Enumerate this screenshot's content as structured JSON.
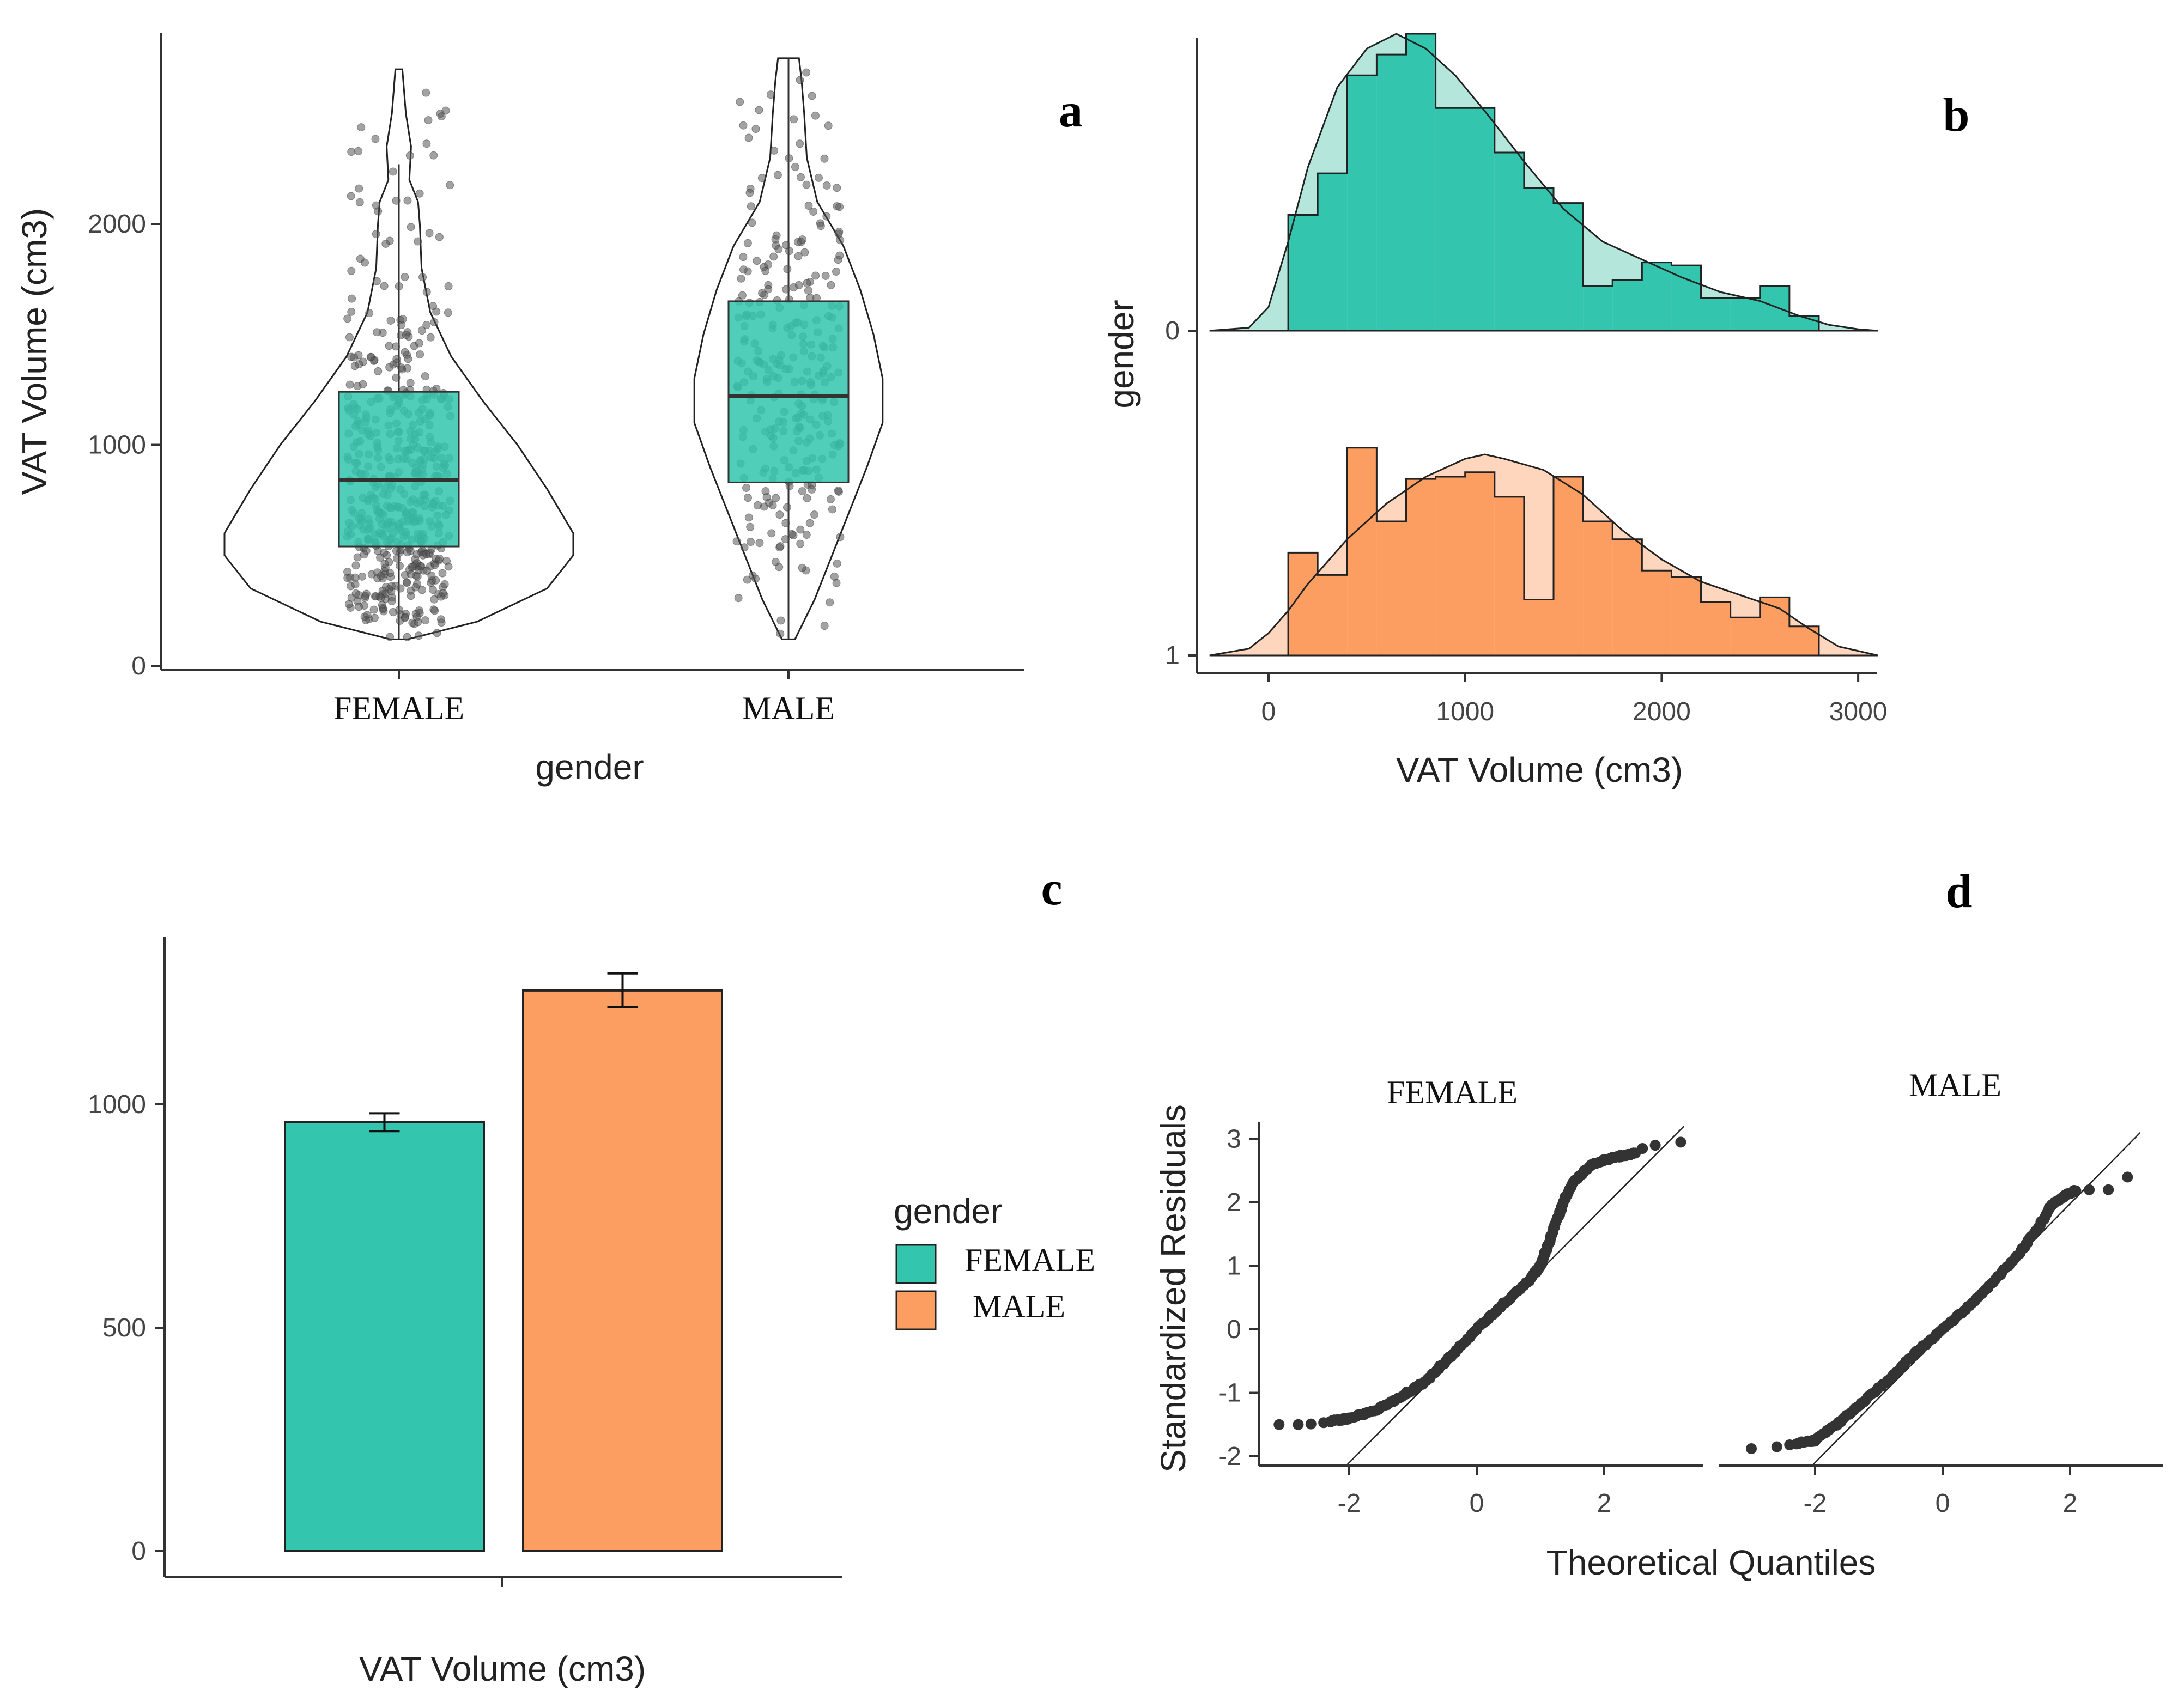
{
  "panels": {
    "a": {
      "letter": "a",
      "chart_data": {
        "type": "violin+box+jitter",
        "xlabel": "gender",
        "ylabel": "VAT Volume (cm3)",
        "categories": [
          "FEMALE",
          "MALE"
        ],
        "yticks": [
          0,
          1000,
          2000
        ],
        "ylim": [
          0,
          2900
        ],
        "violins": [
          {
            "name": "FEMALE",
            "min": 120,
            "max": 2700,
            "density": [
              [
                120,
                0.05
              ],
              [
                200,
                0.45
              ],
              [
                350,
                0.85
              ],
              [
                500,
                1.0
              ],
              [
                600,
                1.0
              ],
              [
                800,
                0.85
              ],
              [
                1000,
                0.68
              ],
              [
                1200,
                0.48
              ],
              [
                1400,
                0.3
              ],
              [
                1600,
                0.18
              ],
              [
                1800,
                0.13
              ],
              [
                2000,
                0.12
              ],
              [
                2100,
                0.11
              ],
              [
                2200,
                0.06
              ],
              [
                2350,
                0.07
              ],
              [
                2500,
                0.04
              ],
              [
                2600,
                0.03
              ],
              [
                2700,
                0.02
              ]
            ]
          },
          {
            "name": "MALE",
            "min": 120,
            "max": 2750,
            "density": [
              [
                120,
                0.05
              ],
              [
                300,
                0.2
              ],
              [
                600,
                0.4
              ],
              [
                900,
                0.6
              ],
              [
                1100,
                0.72
              ],
              [
                1300,
                0.72
              ],
              [
                1500,
                0.65
              ],
              [
                1700,
                0.55
              ],
              [
                1900,
                0.42
              ],
              [
                2100,
                0.22
              ],
              [
                2300,
                0.14
              ],
              [
                2500,
                0.12
              ],
              [
                2650,
                0.1
              ],
              [
                2750,
                0.08
              ]
            ]
          }
        ],
        "boxes": [
          {
            "name": "FEMALE",
            "q1": 540,
            "median": 840,
            "q3": 1240,
            "whisker_low": 120,
            "whisker_high": 2270
          },
          {
            "name": "MALE",
            "q1": 830,
            "median": 1220,
            "q3": 1650,
            "whisker_low": 120,
            "whisker_high": 2750
          }
        ]
      }
    },
    "b": {
      "letter": "b",
      "chart_data": {
        "type": "ridgeline-histogram",
        "xlabel": "VAT Volume (cm3)",
        "ylabel": "gender",
        "xticks": [
          0,
          1000,
          2000,
          3000
        ],
        "xlim": [
          -350,
          3200
        ],
        "yticks": [
          "0",
          "1"
        ],
        "bin_width": 150,
        "series": [
          {
            "name": "0",
            "bin_starts": [
              100,
              250,
              400,
              550,
              700,
              850,
              1000,
              1150,
              1300,
              1450,
              1600,
              1750,
              1900,
              2050,
              2200,
              2350,
              2500,
              2650
            ],
            "counts": [
              0.39,
              0.53,
              0.86,
              0.93,
              1.0,
              0.75,
              0.75,
              0.6,
              0.48,
              0.43,
              0.15,
              0.17,
              0.23,
              0.22,
              0.11,
              0.11,
              0.15,
              0.05
            ],
            "density_curve": [
              [
                -300,
                0
              ],
              [
                -100,
                0.01
              ],
              [
                0,
                0.08
              ],
              [
                100,
                0.3
              ],
              [
                200,
                0.55
              ],
              [
                350,
                0.82
              ],
              [
                500,
                0.95
              ],
              [
                650,
                1.0
              ],
              [
                800,
                0.95
              ],
              [
                950,
                0.86
              ],
              [
                1100,
                0.74
              ],
              [
                1300,
                0.57
              ],
              [
                1500,
                0.41
              ],
              [
                1700,
                0.3
              ],
              [
                1900,
                0.24
              ],
              [
                2100,
                0.18
              ],
              [
                2300,
                0.13
              ],
              [
                2500,
                0.1
              ],
              [
                2700,
                0.05
              ],
              [
                2850,
                0.02
              ],
              [
                3000,
                0.005
              ],
              [
                3100,
                0
              ]
            ]
          },
          {
            "name": "1",
            "bin_starts": [
              100,
              250,
              400,
              550,
              700,
              850,
              1000,
              1150,
              1300,
              1450,
              1600,
              1750,
              1900,
              2050,
              2200,
              2350,
              2500,
              2650
            ],
            "counts": [
              0.46,
              0.36,
              0.93,
              0.6,
              0.79,
              0.8,
              0.82,
              0.71,
              0.25,
              0.8,
              0.6,
              0.52,
              0.38,
              0.35,
              0.24,
              0.17,
              0.26,
              0.13
            ],
            "density_curve": [
              [
                -300,
                0
              ],
              [
                -100,
                0.03
              ],
              [
                0,
                0.1
              ],
              [
                100,
                0.2
              ],
              [
                200,
                0.32
              ],
              [
                400,
                0.52
              ],
              [
                600,
                0.68
              ],
              [
                800,
                0.8
              ],
              [
                1000,
                0.88
              ],
              [
                1100,
                0.9
              ],
              [
                1200,
                0.88
              ],
              [
                1400,
                0.83
              ],
              [
                1600,
                0.72
              ],
              [
                1800,
                0.56
              ],
              [
                2000,
                0.43
              ],
              [
                2200,
                0.33
              ],
              [
                2400,
                0.27
              ],
              [
                2600,
                0.21
              ],
              [
                2750,
                0.12
              ],
              [
                2900,
                0.04
              ],
              [
                3100,
                0
              ]
            ]
          }
        ]
      }
    },
    "c": {
      "letter": "c",
      "chart_data": {
        "type": "bar",
        "xlabel": "VAT Volume (cm3)",
        "ylabel": "",
        "categories": [
          "FEMALE",
          "MALE"
        ],
        "values": [
          960,
          1255
        ],
        "errors": [
          20,
          38
        ],
        "yticks": [
          0,
          500,
          1000
        ],
        "ylim": [
          0,
          1370
        ]
      },
      "legend": {
        "title": "gender",
        "items": [
          {
            "label": "FEMALE",
            "color": "#33c5ad"
          },
          {
            "label": "MALE",
            "color": "#fc9d61"
          }
        ]
      }
    },
    "d": {
      "letter": "d",
      "chart_data": {
        "type": "qq-scatter",
        "xlabel": "Theoretical Quantiles",
        "ylabel": "Standardized Residuals",
        "facets": [
          "FEMALE",
          "MALE"
        ],
        "xticks": [
          -2,
          0,
          2
        ],
        "yticks": [
          -2,
          -1,
          0,
          1,
          2,
          3
        ],
        "xlim": [
          -3.4,
          3.4
        ],
        "ylim": [
          -2.15,
          3.2
        ],
        "female_points": {
          "tail_low": [
            [
              -3.1,
              -1.5
            ],
            [
              -2.8,
              -1.5
            ],
            [
              -2.6,
              -1.49
            ],
            [
              -2.4,
              -1.47
            ]
          ],
          "curve": [
            [
              -2.3,
              -1.45
            ],
            [
              -2.0,
              -1.4
            ],
            [
              -1.6,
              -1.28
            ],
            [
              -1.2,
              -1.07
            ],
            [
              -0.8,
              -0.82
            ],
            [
              -0.4,
              -0.42
            ],
            [
              0,
              0
            ],
            [
              0.4,
              0.38
            ],
            [
              0.8,
              0.75
            ],
            [
              1.0,
              1.0
            ],
            [
              1.15,
              1.4
            ],
            [
              1.3,
              1.85
            ],
            [
              1.5,
              2.3
            ],
            [
              1.8,
              2.6
            ],
            [
              2.2,
              2.72
            ],
            [
              2.5,
              2.78
            ]
          ],
          "tail_high": [
            [
              2.6,
              2.85
            ],
            [
              2.8,
              2.9
            ],
            [
              3.2,
              2.95
            ]
          ]
        },
        "male_points": {
          "tail_low": [
            [
              -3.0,
              -1.88
            ],
            [
              -2.6,
              -1.85
            ],
            [
              -2.4,
              -1.82
            ]
          ],
          "curve": [
            [
              -2.3,
              -1.8
            ],
            [
              -2.0,
              -1.75
            ],
            [
              -1.6,
              -1.45
            ],
            [
              -1.2,
              -1.1
            ],
            [
              -0.8,
              -0.75
            ],
            [
              -0.4,
              -0.35
            ],
            [
              0,
              0
            ],
            [
              0.4,
              0.35
            ],
            [
              0.8,
              0.75
            ],
            [
              1.2,
              1.2
            ],
            [
              1.5,
              1.6
            ],
            [
              1.7,
              1.95
            ],
            [
              1.9,
              2.1
            ],
            [
              2.1,
              2.2
            ]
          ],
          "tail_high": [
            [
              2.3,
              2.2
            ],
            [
              2.6,
              2.2
            ],
            [
              2.9,
              2.4
            ]
          ]
        }
      }
    }
  },
  "colors": {
    "female": "#33c5ad",
    "male": "#fc9d61",
    "female_light": "#b5e6dc",
    "male_light": "#fdd6bd",
    "points": "#444444",
    "axis": "#333333"
  }
}
